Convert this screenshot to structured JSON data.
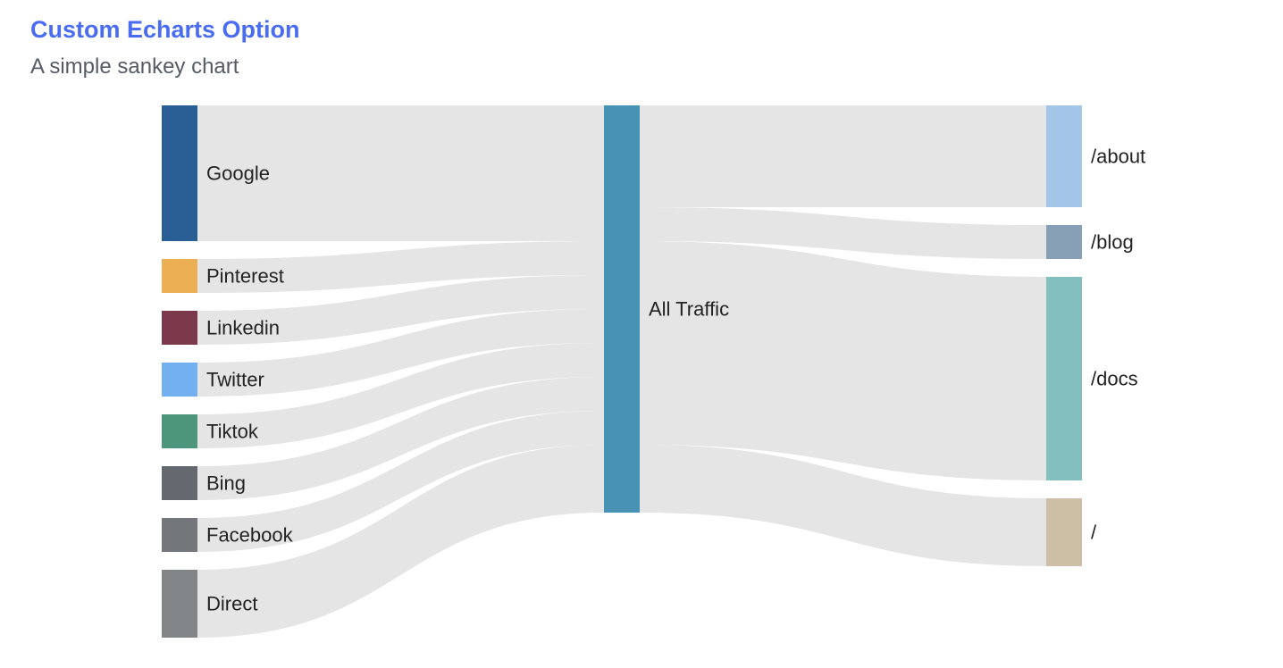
{
  "header": {
    "title": "Custom Echarts Option",
    "subtitle": "A simple sankey chart"
  },
  "chart_data": {
    "type": "sankey",
    "nodes": [
      {
        "name": "Google",
        "color": "#2a5f96"
      },
      {
        "name": "Pinterest",
        "color": "#ecaf53"
      },
      {
        "name": "Linkedin",
        "color": "#7c394b"
      },
      {
        "name": "Twitter",
        "color": "#72b0f0"
      },
      {
        "name": "Tiktok",
        "color": "#4d967b"
      },
      {
        "name": "Bing",
        "color": "#64686f"
      },
      {
        "name": "Facebook",
        "color": "#73767b"
      },
      {
        "name": "Direct",
        "color": "#818588"
      },
      {
        "name": "All Traffic",
        "color": "#4893b5"
      },
      {
        "name": "/about",
        "color": "#a3c6e8"
      },
      {
        "name": "/blog",
        "color": "#87a0b5"
      },
      {
        "name": "/docs",
        "color": "#84bfbf"
      },
      {
        "name": "/",
        "color": "#cdbfa6"
      }
    ],
    "links": [
      {
        "source": "Google",
        "target": "All Traffic",
        "value": 8
      },
      {
        "source": "Pinterest",
        "target": "All Traffic",
        "value": 2
      },
      {
        "source": "Linkedin",
        "target": "All Traffic",
        "value": 2
      },
      {
        "source": "Twitter",
        "target": "All Traffic",
        "value": 2
      },
      {
        "source": "Tiktok",
        "target": "All Traffic",
        "value": 2
      },
      {
        "source": "Bing",
        "target": "All Traffic",
        "value": 2
      },
      {
        "source": "Facebook",
        "target": "All Traffic",
        "value": 2
      },
      {
        "source": "Direct",
        "target": "All Traffic",
        "value": 4
      },
      {
        "source": "All Traffic",
        "target": "/about",
        "value": 6
      },
      {
        "source": "All Traffic",
        "target": "/blog",
        "value": 2
      },
      {
        "source": "All Traffic",
        "target": "/docs",
        "value": 12
      },
      {
        "source": "All Traffic",
        "target": "/",
        "value": 4
      }
    ],
    "link_color": "#e5e5e5"
  }
}
